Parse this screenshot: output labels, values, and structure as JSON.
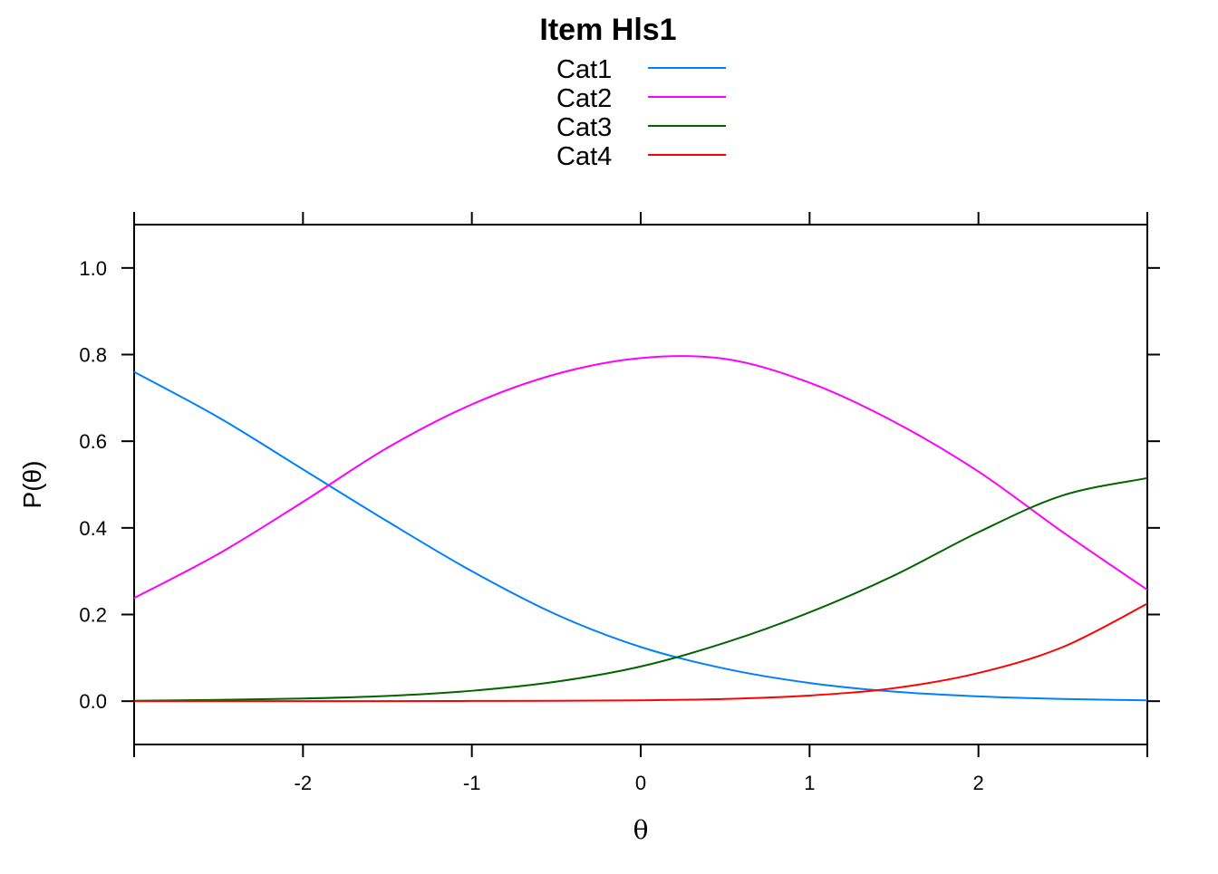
{
  "chart_data": {
    "type": "line",
    "title": "Item Hls1",
    "xlabel": "θ",
    "ylabel": "P(θ)",
    "xlim": [
      -3,
      3
    ],
    "ylim": [
      -0.1,
      1.1
    ],
    "x_ticks": [
      -2,
      -1,
      0,
      1,
      2
    ],
    "x_tick_labels": [
      "-2",
      "-1",
      "0",
      "1",
      "2"
    ],
    "y_ticks": [
      0,
      0.2,
      0.4,
      0.6,
      0.8,
      1.0
    ],
    "y_tick_labels": [
      "0.0",
      "0.2",
      "0.4",
      "0.6",
      "0.8",
      "1.0"
    ],
    "grid": false,
    "legend_position": "top",
    "x": [
      -3,
      -2.5,
      -2,
      -1.5,
      -1,
      -0.5,
      0,
      0.5,
      1,
      1.5,
      2,
      2.5,
      3
    ],
    "series": [
      {
        "name": "Cat1",
        "color": "#0080ff",
        "values": [
          0.76,
          0.655,
          0.535,
          0.415,
          0.3,
          0.2,
          0.125,
          0.075,
          0.042,
          0.022,
          0.011,
          0.005,
          0.002
        ]
      },
      {
        "name": "Cat2",
        "color": "#ff00ff",
        "values": [
          0.238,
          0.34,
          0.46,
          0.585,
          0.685,
          0.755,
          0.792,
          0.79,
          0.735,
          0.645,
          0.53,
          0.39,
          0.257
        ]
      },
      {
        "name": "Cat3",
        "color": "#006400",
        "values": [
          0.001,
          0.003,
          0.006,
          0.012,
          0.024,
          0.045,
          0.08,
          0.135,
          0.205,
          0.29,
          0.39,
          0.475,
          0.515
        ]
      },
      {
        "name": "Cat4",
        "color": "#ff0000",
        "values": [
          0.0,
          0.0,
          0.0,
          0.0,
          0.0005,
          0.001,
          0.002,
          0.005,
          0.013,
          0.03,
          0.065,
          0.125,
          0.225
        ]
      }
    ]
  }
}
